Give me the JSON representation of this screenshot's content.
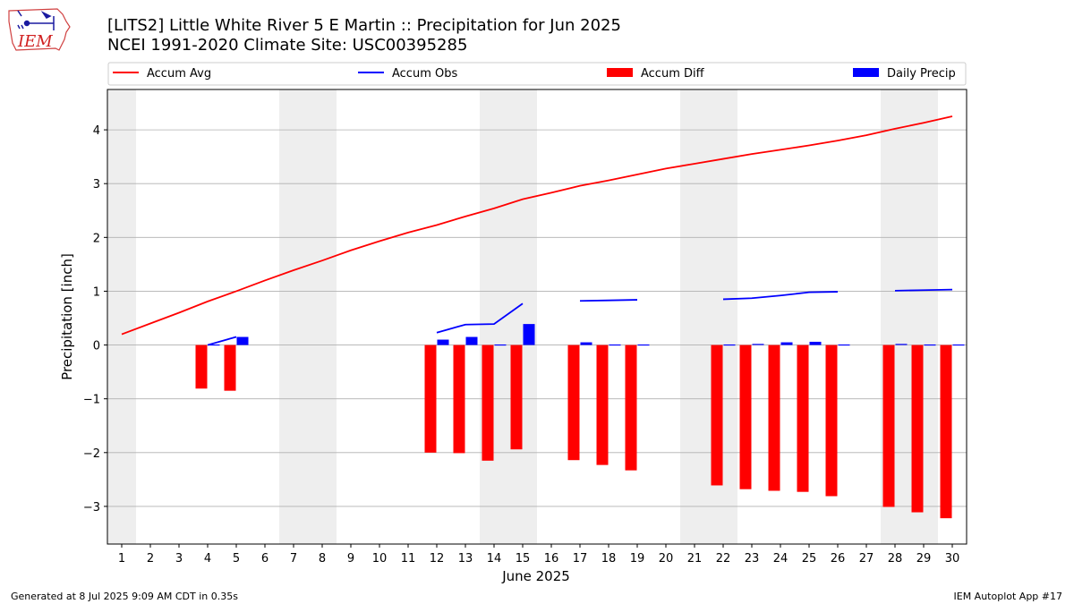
{
  "header": {
    "title_line1": "[LITS2] Little White River 5 E Martin :: Precipitation for Jun 2025",
    "title_line2": "NCEI 1991-2020 Climate Site: USC00395285",
    "logo_text": "IEM"
  },
  "footer": {
    "generated": "Generated at 8 Jul 2025 9:09 AM CDT in 0.35s",
    "app": "IEM Autoplot App #17"
  },
  "chart_data": {
    "type": "bar",
    "xlabel": "June 2025",
    "ylabel": "Precipitation [inch]",
    "ylim": [
      -3.7,
      4.75
    ],
    "xlim": [
      0.5,
      30.5
    ],
    "yticks": [
      -3,
      -2,
      -1,
      0,
      1,
      2,
      3,
      4
    ],
    "ytick_labels": [
      "−3",
      "−2",
      "−1",
      "0",
      "1",
      "2",
      "3",
      "4"
    ],
    "xticks": [
      1,
      2,
      3,
      4,
      5,
      6,
      7,
      8,
      9,
      10,
      11,
      12,
      13,
      14,
      15,
      16,
      17,
      18,
      19,
      20,
      21,
      22,
      23,
      24,
      25,
      26,
      27,
      28,
      29,
      30
    ],
    "grid": "horizontal",
    "legend_placement": "top",
    "weekend_shading": [
      [
        0.5,
        1.5
      ],
      [
        6.5,
        8.5
      ],
      [
        13.5,
        15.5
      ],
      [
        20.5,
        22.5
      ],
      [
        27.5,
        29.5
      ]
    ],
    "colors": {
      "accum_avg": "#ff0000",
      "accum_obs": "#0000ff",
      "accum_diff": "#ff0000",
      "daily_precip": "#0000ff",
      "shade": "#eeeeee",
      "grid": "#b0b0b0"
    },
    "series": [
      {
        "name": "Accum Avg",
        "kind": "line",
        "x": [
          1,
          2,
          3,
          4,
          5,
          6,
          7,
          8,
          9,
          10,
          11,
          12,
          13,
          14,
          15,
          16,
          17,
          18,
          19,
          20,
          21,
          22,
          23,
          24,
          25,
          26,
          27,
          28,
          29,
          30
        ],
        "values": [
          0.2,
          0.4,
          0.6,
          0.81,
          1.0,
          1.2,
          1.39,
          1.57,
          1.76,
          1.93,
          2.09,
          2.23,
          2.39,
          2.54,
          2.71,
          2.83,
          2.96,
          3.06,
          3.17,
          3.28,
          3.37,
          3.46,
          3.55,
          3.63,
          3.71,
          3.8,
          3.9,
          4.02,
          4.13,
          4.25
        ]
      },
      {
        "name": "Accum Obs",
        "kind": "line",
        "x": [
          1,
          2,
          3,
          4,
          5,
          6,
          7,
          8,
          9,
          10,
          11,
          12,
          13,
          14,
          15,
          16,
          17,
          18,
          19,
          20,
          21,
          22,
          23,
          24,
          25,
          26,
          27,
          28,
          29,
          30
        ],
        "values": [
          null,
          null,
          null,
          0.0,
          0.15,
          null,
          null,
          null,
          null,
          null,
          null,
          0.23,
          0.38,
          0.39,
          0.77,
          null,
          0.82,
          0.83,
          0.84,
          null,
          null,
          0.85,
          0.87,
          0.92,
          0.98,
          0.99,
          null,
          1.01,
          1.02,
          1.03
        ]
      },
      {
        "name": "Accum Diff",
        "kind": "bar",
        "x": [
          4,
          5,
          12,
          13,
          14,
          15,
          17,
          18,
          19,
          22,
          23,
          24,
          25,
          26,
          28,
          29,
          30
        ],
        "values": [
          -0.81,
          -0.85,
          -2.0,
          -2.01,
          -2.15,
          -1.94,
          -2.14,
          -2.23,
          -2.33,
          -2.61,
          -2.68,
          -2.71,
          -2.73,
          -2.81,
          -3.01,
          -3.11,
          -3.22
        ]
      },
      {
        "name": "Daily Precip",
        "kind": "bar",
        "x": [
          4,
          5,
          12,
          13,
          14,
          15,
          17,
          18,
          19,
          22,
          23,
          24,
          25,
          26,
          28,
          29,
          30
        ],
        "values": [
          0.01,
          0.15,
          0.1,
          0.15,
          0.01,
          0.39,
          0.05,
          0.01,
          0.01,
          0.01,
          0.02,
          0.05,
          0.06,
          0.01,
          0.02,
          0.01,
          0.01
        ]
      }
    ]
  }
}
